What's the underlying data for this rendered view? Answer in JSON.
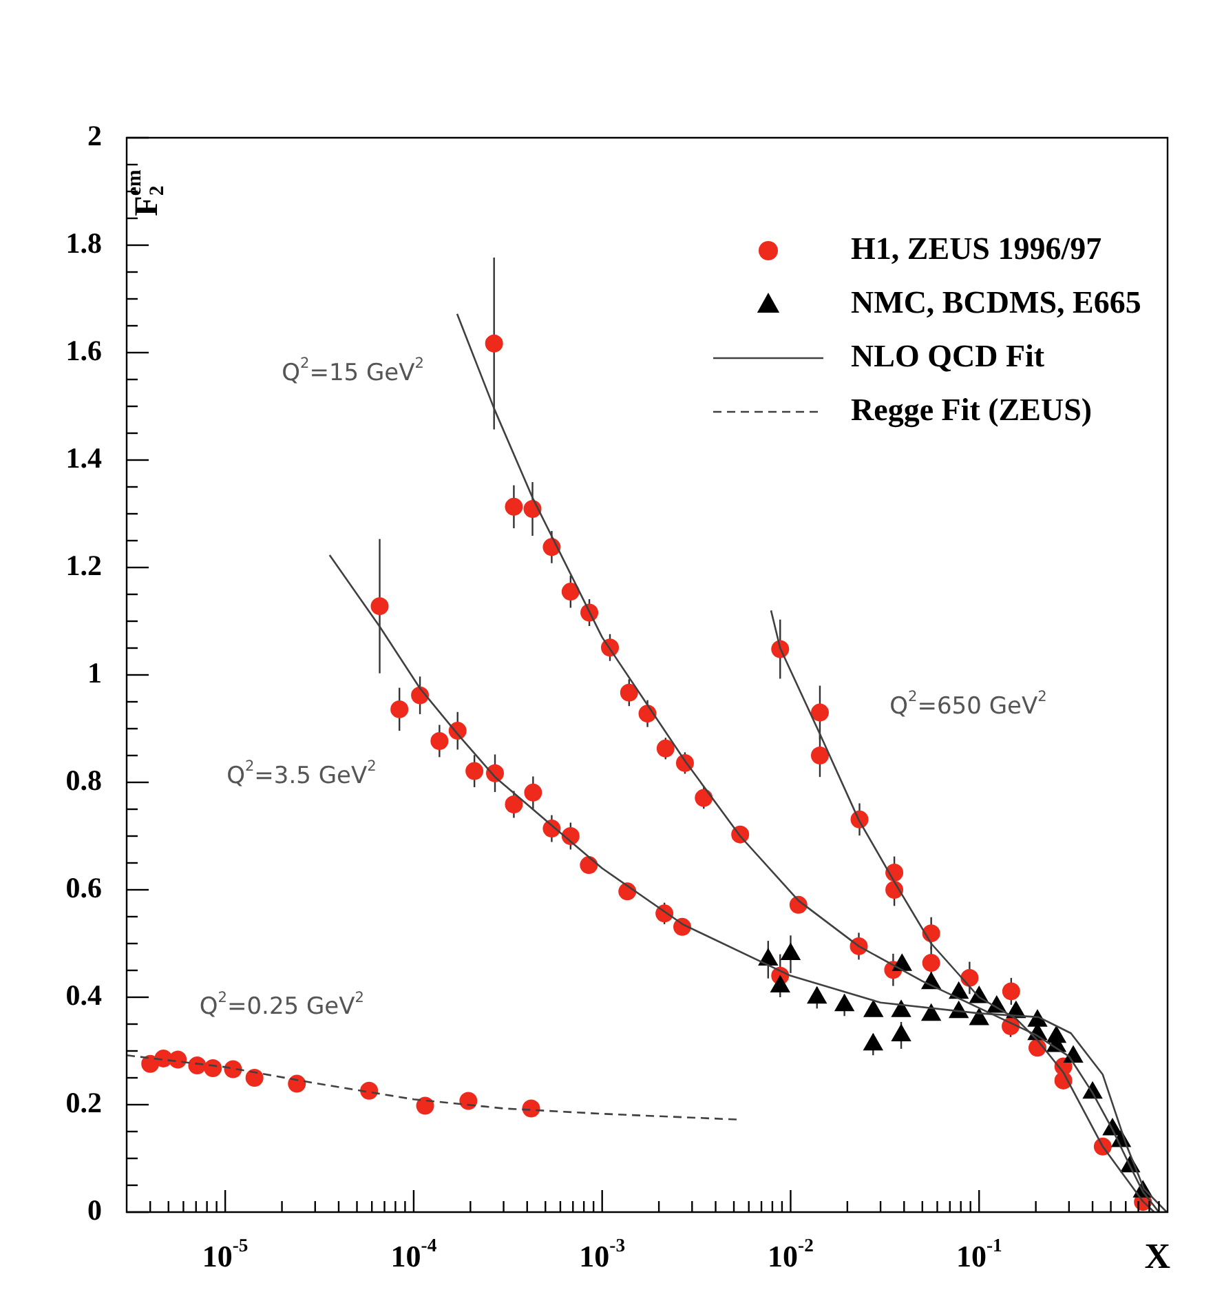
{
  "chart_data": {
    "type": "scatter",
    "xlabel": "X",
    "ylabel": "F$_{2}$$^{em}$",
    "log": "x",
    "legend": "top right",
    "xlim": [
      3e-06,
      1
    ],
    "ylim": [
      0,
      2
    ],
    "xticks": [
      {
        "value": 4e-06,
        "label": null
      },
      {
        "value": 5e-06,
        "label": null
      },
      {
        "value": 6e-06,
        "label": null
      },
      {
        "value": 7e-06,
        "label": null
      },
      {
        "value": 8e-06,
        "label": null
      },
      {
        "value": 9e-06,
        "label": null
      },
      {
        "value": 1e-05,
        "label": "10$^{-5}$"
      },
      {
        "value": 2e-05,
        "label": null
      },
      {
        "value": 3e-05,
        "label": null
      },
      {
        "value": 4e-05,
        "label": null
      },
      {
        "value": 5e-05,
        "label": null
      },
      {
        "value": 6e-05,
        "label": null
      },
      {
        "value": 7e-05,
        "label": null
      },
      {
        "value": 8e-05,
        "label": null
      },
      {
        "value": 9e-05,
        "label": null
      },
      {
        "value": 0.0001,
        "label": "10$^{-4}$"
      },
      {
        "value": 0.0002,
        "label": null
      },
      {
        "value": 0.0003,
        "label": null
      },
      {
        "value": 0.0004,
        "label": null
      },
      {
        "value": 0.0005,
        "label": null
      },
      {
        "value": 0.0006,
        "label": null
      },
      {
        "value": 0.0007,
        "label": null
      },
      {
        "value": 0.0008,
        "label": null
      },
      {
        "value": 0.0009,
        "label": null
      },
      {
        "value": 0.001,
        "label": "10$^{-3}$"
      },
      {
        "value": 0.002,
        "label": null
      },
      {
        "value": 0.003,
        "label": null
      },
      {
        "value": 0.004,
        "label": null
      },
      {
        "value": 0.005,
        "label": null
      },
      {
        "value": 0.006,
        "label": null
      },
      {
        "value": 0.007,
        "label": null
      },
      {
        "value": 0.008,
        "label": null
      },
      {
        "value": 0.009,
        "label": null
      },
      {
        "value": 0.01,
        "label": "10$^{-2}$"
      },
      {
        "value": 0.02,
        "label": null
      },
      {
        "value": 0.03,
        "label": null
      },
      {
        "value": 0.04,
        "label": null
      },
      {
        "value": 0.05,
        "label": null
      },
      {
        "value": 0.06,
        "label": null
      },
      {
        "value": 0.07,
        "label": null
      },
      {
        "value": 0.08,
        "label": null
      },
      {
        "value": 0.09,
        "label": null
      },
      {
        "value": 0.1,
        "label": "10$^{-1}$"
      },
      {
        "value": 0.2,
        "label": null
      },
      {
        "value": 0.3,
        "label": null
      },
      {
        "value": 0.4,
        "label": null
      },
      {
        "value": 0.5,
        "label": null
      },
      {
        "value": 0.6,
        "label": null
      },
      {
        "value": 0.7,
        "label": null
      },
      {
        "value": 0.8,
        "label": null
      },
      {
        "value": 0.9,
        "label": null
      }
    ],
    "yticks": [
      0,
      {
        "value": 0.05,
        "label": null
      },
      {
        "value": 0.1,
        "label": null
      },
      {
        "value": 0.15,
        "label": null
      },
      0.2,
      {
        "value": 0.25,
        "label": null
      },
      {
        "value": 0.3,
        "label": null
      },
      {
        "value": 0.35,
        "label": null
      },
      0.4,
      {
        "value": 0.45,
        "label": null
      },
      {
        "value": 0.5,
        "label": null
      },
      {
        "value": 0.55,
        "label": null
      },
      0.6,
      {
        "value": 0.65,
        "label": null
      },
      {
        "value": 0.7,
        "label": null
      },
      {
        "value": 0.75,
        "label": null
      },
      0.8,
      {
        "value": 0.85,
        "label": null
      },
      {
        "value": 0.9,
        "label": null
      },
      {
        "value": 0.95,
        "label": null
      },
      1,
      {
        "value": 1.05,
        "label": null
      },
      {
        "value": 1.1,
        "label": null
      },
      {
        "value": 1.15,
        "label": null
      },
      1.2,
      {
        "value": 1.25,
        "label": null
      },
      {
        "value": 1.3,
        "label": null
      },
      {
        "value": 1.35,
        "label": null
      },
      1.4,
      {
        "value": 1.45,
        "label": null
      },
      {
        "value": 1.5,
        "label": null
      },
      {
        "value": 1.55,
        "label": null
      },
      1.6,
      {
        "value": 1.65,
        "label": null
      },
      {
        "value": 1.7,
        "label": null
      },
      {
        "value": 1.75,
        "label": null
      },
      1.8,
      {
        "value": 1.85,
        "label": null
      },
      {
        "value": 1.9,
        "label": null
      },
      {
        "value": 1.95,
        "label": null
      },
      2
    ],
    "annotations": [
      "Q$^{2}$=15 GeV$^{2}$",
      "Q$^{2}$=3.5 GeV$^{2}$",
      "Q$^{2}$=0.25 GeV$^{2}$",
      "Q$^{2}$=650 GeV$^{2}$"
    ],
    "series": [
      {
        "name": "H1, ZEUS 1996/97",
        "type": "scatter",
        "marker": "circle",
        "color": "#ee2a1c",
        "x": [
          4e-06,
          4.7e-06,
          5.6e-06,
          7.1e-06,
          8.6e-06,
          1.1e-05,
          1.43e-05,
          2.4e-05,
          5.8e-05,
          0.000115,
          0.000195,
          0.00042,
          6.6e-05,
          8.4e-05,
          0.000108,
          0.000137,
          0.000171,
          0.00021,
          0.00027,
          0.00034,
          0.00043,
          0.00054,
          0.00068,
          0.00085,
          0.00136,
          0.00214,
          0.00266,
          0.0088,
          0.000267,
          0.00034,
          0.000427,
          0.00054,
          0.00068,
          0.000855,
          0.0011,
          0.00139,
          0.00174,
          0.00217,
          0.00275,
          0.00346,
          0.0054,
          0.011,
          0.023,
          0.035,
          0.089,
          0.147,
          0.204,
          0.28,
          0.28,
          0.453,
          0.74,
          0.0088,
          0.0143,
          0.0143,
          0.0232,
          0.0355,
          0.0355,
          0.0557,
          0.0557,
          0.148
        ],
        "values": [
          0.276,
          0.286,
          0.284,
          0.273,
          0.268,
          0.266,
          0.25,
          0.239,
          0.226,
          0.198,
          0.207,
          0.193,
          1.128,
          0.936,
          0.962,
          0.877,
          0.896,
          0.821,
          0.817,
          0.759,
          0.781,
          0.714,
          0.7,
          0.646,
          0.597,
          0.556,
          0.531,
          0.44,
          1.617,
          1.313,
          1.309,
          1.238,
          1.155,
          1.116,
          1.051,
          0.967,
          0.928,
          0.863,
          0.836,
          0.771,
          0.703,
          0.572,
          0.495,
          0.451,
          0.436,
          0.346,
          0.306,
          0.271,
          0.245,
          0.122,
          0.019,
          1.048,
          0.93,
          0.85,
          0.731,
          0.632,
          0.6,
          0.519,
          0.464,
          0.411
        ],
        "errors": [
          null,
          null,
          null,
          null,
          null,
          null,
          null,
          null,
          null,
          null,
          null,
          null,
          0.125,
          0.04,
          0.035,
          0.03,
          0.035,
          0.03,
          0.035,
          0.025,
          0.03,
          0.025,
          0.025,
          0.015,
          null,
          0.02,
          null,
          0.04,
          0.16,
          0.04,
          0.05,
          0.03,
          0.03,
          0.025,
          0.025,
          0.025,
          0.025,
          0.02,
          0.02,
          0.02,
          null,
          null,
          0.025,
          0.03,
          0.03,
          0.02,
          0.015,
          0.015,
          null,
          null,
          null,
          0.055,
          0.05,
          0.04,
          0.03,
          0.03,
          0.03,
          0.03,
          0.03,
          0.025
        ]
      },
      {
        "name": "NMC, BCDMS, E665",
        "type": "scatter",
        "marker": "triangle",
        "color": "#000000",
        "x": [
          0.0076,
          0.0088,
          0.01,
          0.0138,
          0.0193,
          0.0275,
          0.0274,
          0.0386,
          0.0386,
          0.039,
          0.0557,
          0.0557,
          0.078,
          0.078,
          0.1,
          0.1,
          0.124,
          0.157,
          0.204,
          0.204,
          0.257,
          0.257,
          0.316,
          0.4,
          0.51,
          0.567,
          0.634,
          0.74
        ],
        "values": [
          0.47,
          0.42,
          0.48,
          0.399,
          0.385,
          0.374,
          0.312,
          0.374,
          0.329,
          0.46,
          0.367,
          0.426,
          0.372,
          0.408,
          0.359,
          0.4,
          0.382,
          0.372,
          0.356,
          0.331,
          0.326,
          0.309,
          0.289,
          0.222,
          0.154,
          0.132,
          0.085,
          0.038
        ],
        "errors": [
          0.035,
          null,
          0.035,
          0.02,
          0.02,
          null,
          0.02,
          null,
          0.025,
          null,
          null,
          null,
          null,
          null,
          null,
          null,
          null,
          null,
          null,
          null,
          null,
          null,
          null,
          null,
          null,
          null,
          null,
          null
        ]
      },
      {
        "name": "NLO QCD Fit",
        "type": "line",
        "line_style": "solid",
        "color": "#404040",
        "x": [
          3.58e-05,
          6.6e-05,
          0.000108,
          0.000171,
          0.00027,
          0.00054,
          0.001,
          0.0027,
          0.01,
          0.03,
          0.1,
          0.207,
          0.307,
          0.453,
          0.6,
          0.75,
          0.99
        ],
        "values": [
          1.223,
          1.09,
          0.975,
          0.89,
          0.81,
          0.72,
          0.64,
          0.535,
          0.44,
          0.39,
          0.37,
          0.363,
          0.333,
          0.256,
          0.128,
          0.043,
          0
        ]
      },
      {
        "type": "line",
        "line_style": "solid",
        "color": "#404040",
        "x": [
          0.00017,
          0.000267,
          0.000427,
          0.001,
          0.00275,
          0.0054,
          0.011,
          0.023,
          0.05,
          0.1,
          0.2,
          0.3,
          0.4,
          0.51,
          0.634,
          0.74,
          0.9
        ],
        "values": [
          1.672,
          1.496,
          1.33,
          1.07,
          0.84,
          0.7,
          0.58,
          0.495,
          0.43,
          0.38,
          0.33,
          0.29,
          0.222,
          0.154,
          0.085,
          0.038,
          0
        ]
      },
      {
        "type": "line",
        "line_style": "solid",
        "color": "#404040",
        "x": [
          0.00787,
          0.0088,
          0.0143,
          0.023,
          0.0355,
          0.0557,
          0.1,
          0.157,
          0.204,
          0.28,
          0.453,
          0.74,
          0.85
        ],
        "values": [
          1.12,
          1.05,
          0.89,
          0.73,
          0.615,
          0.5,
          0.4,
          0.36,
          0.32,
          0.26,
          0.122,
          0.02,
          0
        ]
      },
      {
        "name": "Regge Fit (ZEUS)",
        "type": "line",
        "line_style": "dashed",
        "color": "#404040",
        "x": [
          3e-06,
          1e-05,
          3e-05,
          0.0001,
          0.0003,
          0.001,
          0.0055
        ],
        "values": [
          0.292,
          0.27,
          0.24,
          0.21,
          0.193,
          0.183,
          0.172
        ]
      }
    ]
  }
}
